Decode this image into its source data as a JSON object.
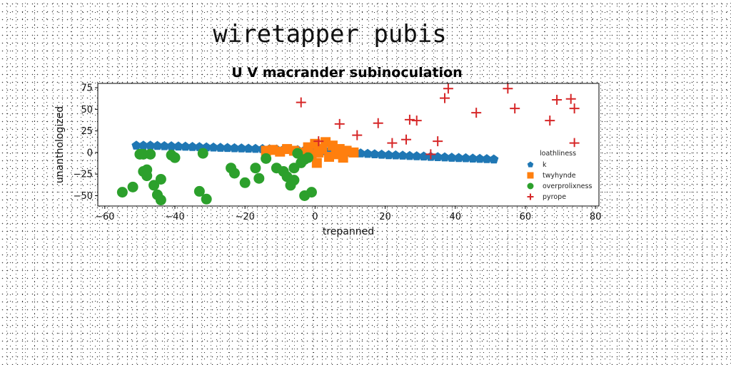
{
  "figure_title": "wiretapper pubis",
  "chart_data": {
    "type": "scatter",
    "title": "U V macrander subinoculation",
    "xlabel": "trepanned",
    "ylabel": "unanthologized",
    "xlim": [
      -62,
      81
    ],
    "ylim": [
      -62,
      80
    ],
    "xticks": [
      -60,
      -40,
      -20,
      0,
      20,
      40,
      60,
      80
    ],
    "yticks": [
      -50,
      -25,
      0,
      25,
      50,
      75
    ],
    "legend": {
      "title": "loathliness",
      "placement": "right"
    },
    "grid": false,
    "series": [
      {
        "name": "k",
        "marker": "pentagon",
        "color": "#1f77b4",
        "x": [
          -51,
          -49,
          -47,
          -45,
          -43,
          -41,
          -39,
          -37,
          -35,
          -33,
          -31,
          -29,
          -27,
          -25,
          -23,
          -21,
          -19,
          -17,
          -15,
          -13,
          -11,
          -9,
          -7,
          -5,
          -3,
          -1,
          1,
          3,
          5,
          7,
          9,
          11,
          13,
          15,
          17,
          19,
          21,
          23,
          25,
          27,
          29,
          31,
          33,
          35,
          37,
          39,
          41,
          43,
          45,
          47,
          49,
          51
        ],
        "y": [
          8,
          8,
          8,
          7.7,
          7.4,
          7.2,
          7,
          6.8,
          6.5,
          6.3,
          6,
          5.8,
          5.5,
          5.3,
          5,
          4.8,
          4.5,
          4.3,
          4,
          3.8,
          3.5,
          3.3,
          3,
          2.8,
          2.5,
          2.3,
          2,
          1.5,
          1,
          0.5,
          0,
          -0.5,
          -1,
          -1.5,
          -2,
          -2.5,
          -3,
          -3.3,
          -3.6,
          -4,
          -4.3,
          -4.6,
          -5,
          -5.3,
          -5.6,
          -6,
          -6.3,
          -6.6,
          -7,
          -7.3,
          -7.6,
          -8
        ]
      },
      {
        "name": "twyhynde",
        "marker": "square",
        "color": "#ff7f0e",
        "x": [
          -14,
          -12,
          -10,
          -8,
          -6,
          -4,
          -2,
          -1,
          0,
          0.5,
          1,
          2,
          3,
          4,
          5,
          6,
          7,
          8,
          9,
          11
        ],
        "y": [
          2,
          3,
          1,
          4,
          2,
          0,
          6,
          -2,
          10,
          -12,
          0,
          4,
          12,
          -5,
          8,
          -2,
          4,
          -6,
          2,
          0
        ]
      },
      {
        "name": "overprolixness",
        "marker": "circle",
        "color": "#2ca02c",
        "x": [
          -55,
          -52,
          -50,
          -49,
          -49,
          -48,
          -48,
          -47,
          -46,
          -45,
          -44,
          -44,
          -41,
          -40,
          -33,
          -32,
          -31,
          -24,
          -23,
          -20,
          -17,
          -16,
          -14,
          -11,
          -9,
          -8,
          -7,
          -6,
          -6,
          -5,
          -4,
          -3,
          -3,
          -2,
          -1
        ],
        "y": [
          -46,
          -40,
          -2,
          -2,
          -22,
          -27,
          -20,
          -2,
          -38,
          -49,
          -31,
          -55,
          -3,
          -6,
          -45,
          -1,
          -54,
          -18,
          -24,
          -35,
          -18,
          -30,
          -7,
          -18,
          -22,
          -28,
          -38,
          -18,
          -32,
          -1,
          -12,
          -8,
          -50,
          -6,
          -46
        ]
      },
      {
        "name": "pyrope",
        "marker": "plus",
        "color": "#d62728",
        "x": [
          -4,
          1,
          7,
          12,
          18,
          22,
          26,
          27,
          29,
          33,
          35,
          37,
          38,
          46,
          55,
          57,
          67,
          69,
          73,
          74,
          74
        ],
        "y": [
          58,
          13,
          33,
          20,
          34,
          11,
          15,
          38,
          37,
          -2,
          13,
          63,
          74,
          46,
          74,
          51,
          37,
          61,
          62,
          51,
          11
        ]
      }
    ]
  }
}
